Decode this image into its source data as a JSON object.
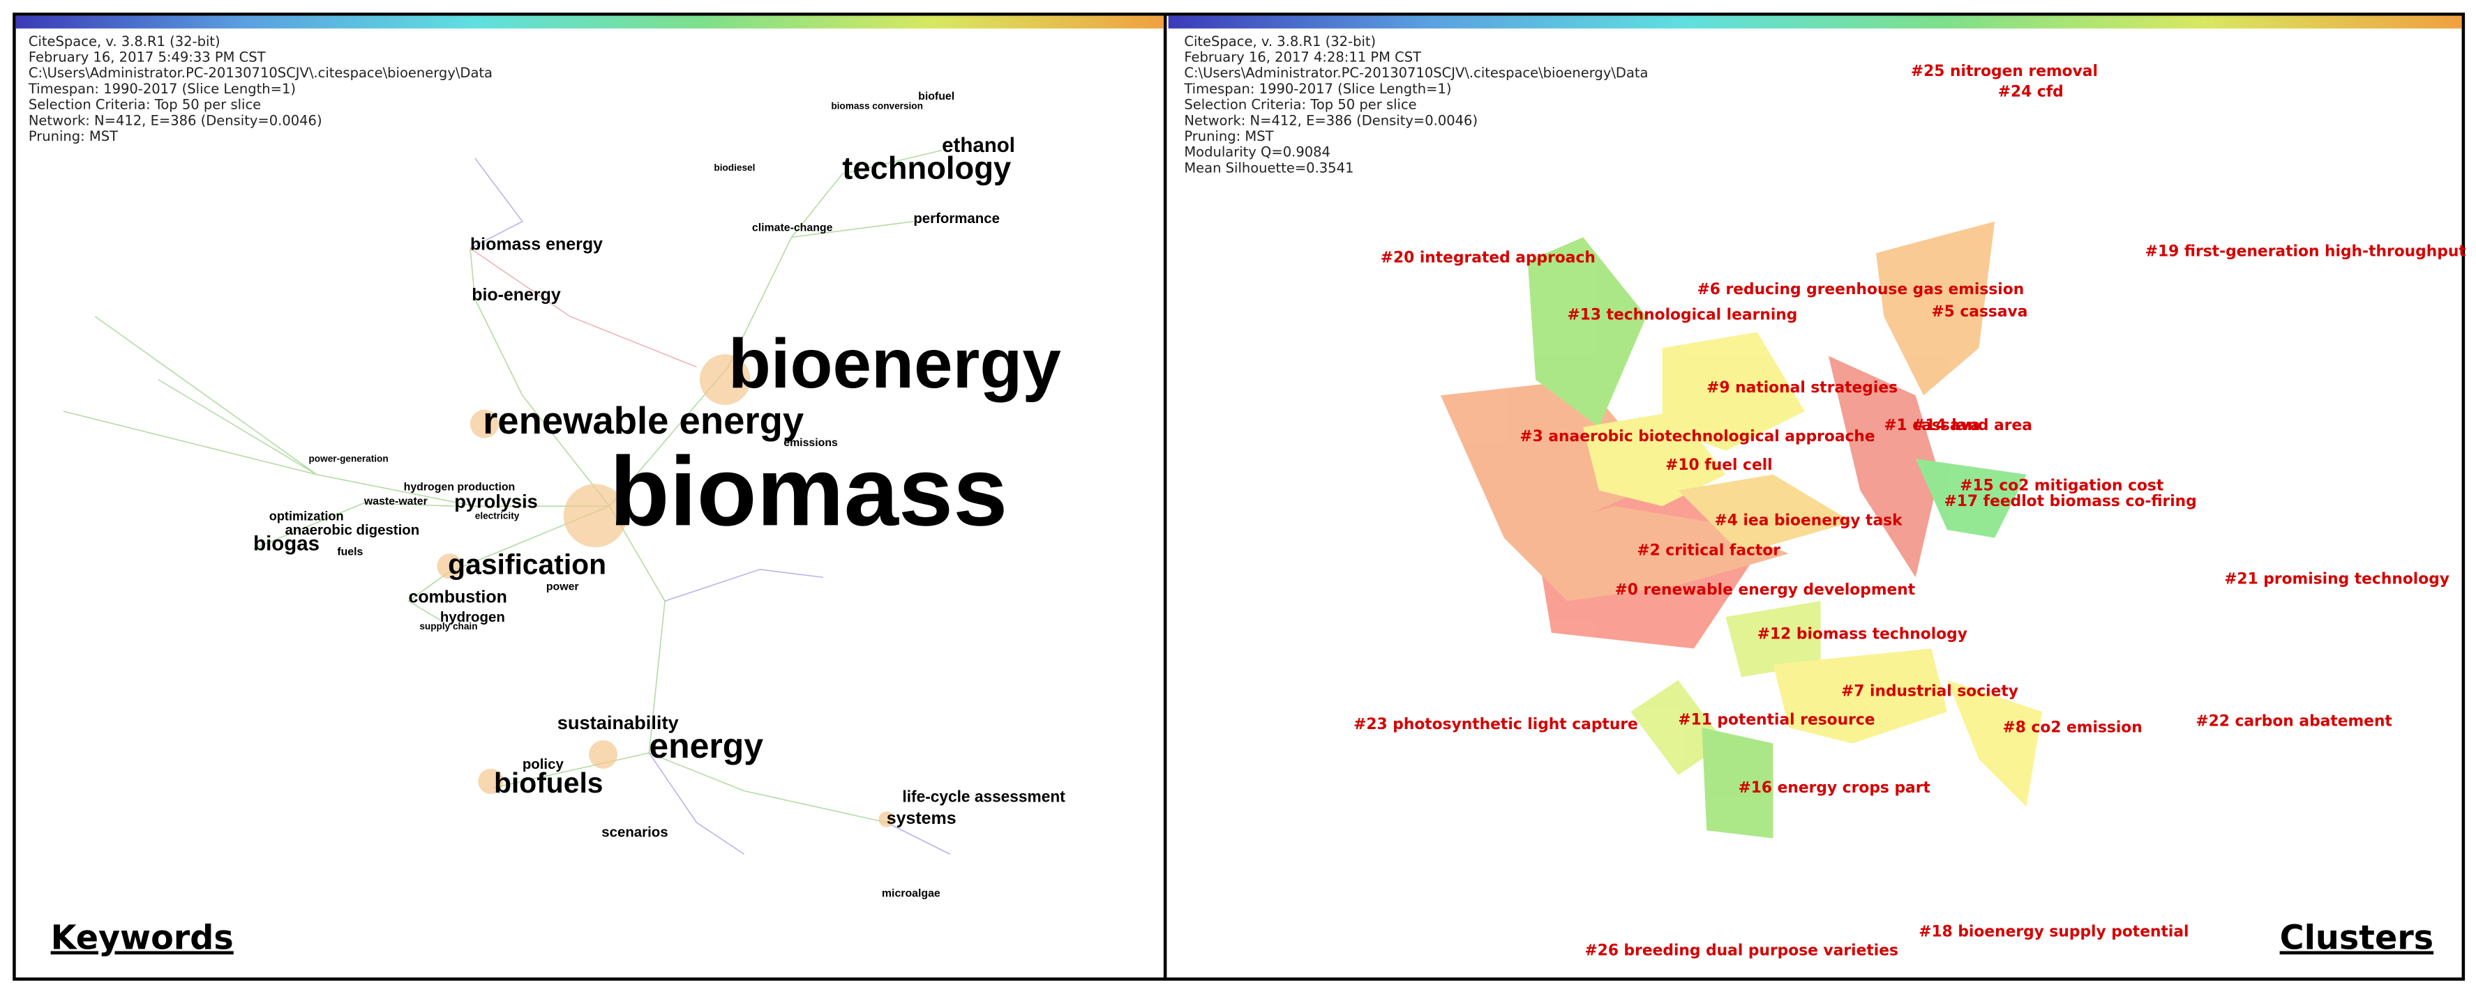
{
  "left_panel": {
    "header": [
      "CiteSpace, v. 3.8.R1 (32-bit)",
      "February 16, 2017 5:49:33 PM CST",
      "C:\\Users\\Administrator.PC-20130710SCJV\\.citespace\\bioenergy\\Data",
      "Timespan: 1990-2017 (Slice Length=1)",
      "Selection Criteria: Top 50 per slice",
      "Network: N=412, E=386 (Density=0.0046)",
      "Pruning: MST"
    ],
    "keywords": [
      "bioenergy",
      "renewable energy",
      "biomass",
      "technology",
      "ethanol",
      "biomass energy",
      "bio-energy",
      "gasification",
      "pyrolysis",
      "biogas",
      "combustion",
      "hydrogen",
      "anaerobic digestion",
      "optimization",
      "sustainability",
      "energy",
      "biofuels",
      "policy",
      "life-cycle assessment",
      "systems",
      "scenarios",
      "microalgae",
      "performance",
      "climate-change",
      "biodiesel",
      "hydrogen production",
      "waste-water",
      "power-generation",
      "power",
      "fuels",
      "biomass conversion",
      "biofuel",
      "emissions",
      "supply chain",
      "electricity"
    ],
    "caption": "Keywords"
  },
  "right_panel": {
    "header": [
      "CiteSpace, v. 3.8.R1 (32-bit)",
      "February 16, 2017 4:28:11 PM CST",
      "C:\\Users\\Administrator.PC-20130710SCJV\\.citespace\\bioenergy\\Data",
      "Timespan: 1990-2017 (Slice Length=1)",
      "Selection Criteria: Top 50 per slice",
      "Network: N=412, E=386 (Density=0.0046)",
      "Pruning: MST",
      "Modularity Q=0.9084",
      "Mean Silhouette=0.3541"
    ],
    "clusters": [
      "#25 nitrogen removal",
      "#24 cfd",
      "#20 integrated approach",
      "#19 first-generation high-throughput",
      "#6 reducing greenhouse gas emission",
      "#13 technological learning",
      "#5 cassava",
      "#9 national strategies",
      "#3 anaerobic biotechnological approache",
      "#1 cassava",
      "#14 land area",
      "#10 fuel cell",
      "#15 co2 mitigation cost",
      "#17 feedlot biomass co-firing",
      "#4 iea bioenergy task",
      "#2 critical factor",
      "#0 renewable energy development",
      "#21 promising technology",
      "#12 biomass technology",
      "#7 industrial society",
      "#23 photosynthetic light capture",
      "#11 potential resource",
      "#8 co2 emission",
      "#22 carbon abatement",
      "#16 energy crops part",
      "#18 bioenergy supply potential",
      "#26 breeding dual purpose varieties"
    ],
    "caption": "Clusters"
  }
}
